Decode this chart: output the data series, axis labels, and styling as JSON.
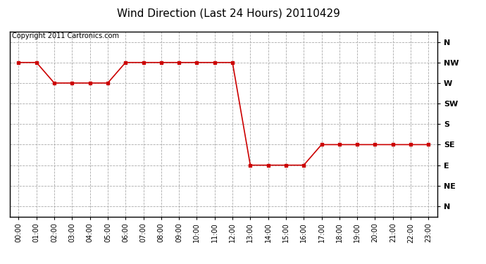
{
  "title": "Wind Direction (Last 24 Hours) 20110429",
  "copyright_text": "Copyright 2011 Cartronics.com",
  "x_labels": [
    "00:00",
    "01:00",
    "02:00",
    "03:00",
    "04:00",
    "05:00",
    "06:00",
    "07:00",
    "08:00",
    "09:00",
    "10:00",
    "11:00",
    "12:00",
    "13:00",
    "14:00",
    "15:00",
    "16:00",
    "17:00",
    "18:00",
    "19:00",
    "20:00",
    "21:00",
    "22:00",
    "23:00"
  ],
  "y_tick_labels": [
    "N",
    "NW",
    "W",
    "SW",
    "S",
    "SE",
    "E",
    "NE",
    "N"
  ],
  "y_tick_values": [
    8,
    7,
    6,
    5,
    4,
    3,
    2,
    1,
    0
  ],
  "wind_data": {
    "00:00": 7,
    "01:00": 7,
    "02:00": 6,
    "03:00": 6,
    "04:00": 6,
    "05:00": 6,
    "06:00": 7,
    "07:00": 7,
    "08:00": 7,
    "09:00": 7,
    "10:00": 7,
    "11:00": 7,
    "12:00": 7,
    "13:00": 2,
    "14:00": 2,
    "15:00": 2,
    "16:00": 2,
    "17:00": 3,
    "18:00": 3,
    "19:00": 3,
    "20:00": 3,
    "21:00": 3,
    "22:00": 3,
    "23:00": 3
  },
  "line_color": "#cc0000",
  "marker": "s",
  "marker_size": 3,
  "background_color": "#ffffff",
  "plot_bg_color": "#ffffff",
  "grid_color": "#aaaaaa",
  "grid_style": "--",
  "title_fontsize": 11,
  "copyright_fontsize": 7,
  "tick_fontsize": 7,
  "ytick_fontsize": 8
}
